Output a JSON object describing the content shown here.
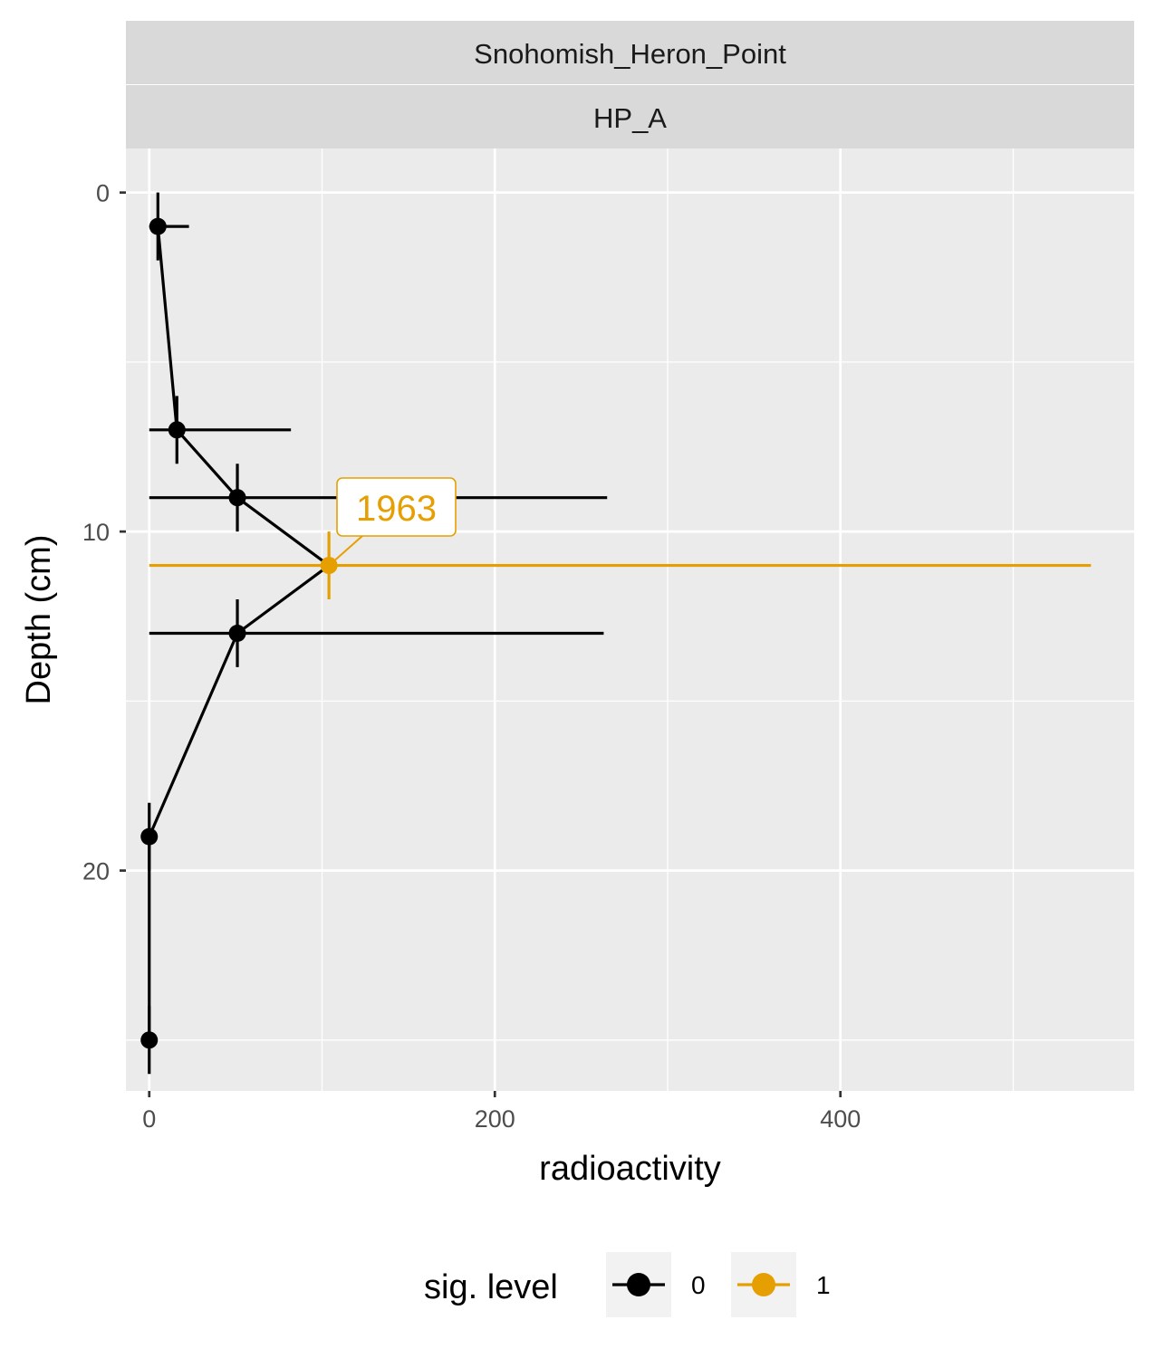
{
  "chart_data": {
    "type": "scatter",
    "title": "",
    "facet": {
      "row1": "Snohomish_Heron_Point",
      "row2": "HP_A"
    },
    "xlabel": "radioactivity",
    "ylabel": "Depth (cm)",
    "xlim": [
      -13.5,
      570
    ],
    "ylim": [
      26.5,
      -1.3
    ],
    "y_reversed": true,
    "x_ticks": [
      0,
      200,
      400
    ],
    "x_tick_labels": [
      "0",
      "200",
      "400"
    ],
    "y_ticks": [
      0,
      10,
      20
    ],
    "y_tick_labels": [
      "0",
      "10",
      "20"
    ],
    "grid": true,
    "legend": {
      "title": "sig. level",
      "position": "bottom",
      "entries": [
        {
          "label": "0",
          "color": "#000000"
        },
        {
          "label": "1",
          "color": "#E69F00"
        }
      ]
    },
    "series": [
      {
        "name": "0",
        "color": "#000000",
        "points": [
          {
            "x": 5,
            "y": 1,
            "xmin": 0,
            "xmax": 23,
            "ymin": 0,
            "ymax": 2
          },
          {
            "x": 16,
            "y": 7,
            "xmin": 0,
            "xmax": 82,
            "ymin": 6,
            "ymax": 8
          },
          {
            "x": 51,
            "y": 9,
            "xmin": 0,
            "xmax": 265,
            "ymin": 8,
            "ymax": 10
          },
          {
            "x": 51,
            "y": 13,
            "xmin": 0,
            "xmax": 263,
            "ymin": 12,
            "ymax": 14
          },
          {
            "x": 0,
            "y": 19,
            "xmin": 0,
            "xmax": 0,
            "ymin": 18,
            "ymax": 20
          },
          {
            "x": 0,
            "y": 25,
            "xmin": 0,
            "xmax": 0,
            "ymin": 24,
            "ymax": 26
          }
        ]
      },
      {
        "name": "1",
        "color": "#E69F00",
        "points": [
          {
            "x": 104,
            "y": 11,
            "xmin": 0,
            "xmax": 545,
            "ymin": 10,
            "ymax": 12
          }
        ]
      }
    ],
    "path": [
      {
        "x": 5,
        "y": 1
      },
      {
        "x": 16,
        "y": 7
      },
      {
        "x": 51,
        "y": 9
      },
      {
        "x": 104,
        "y": 11
      },
      {
        "x": 51,
        "y": 13
      },
      {
        "x": 0,
        "y": 19
      },
      {
        "x": 0,
        "y": 25
      }
    ],
    "annotations": [
      {
        "text": "1963",
        "x": 104,
        "y": 11,
        "color": "#E69F00"
      }
    ]
  }
}
